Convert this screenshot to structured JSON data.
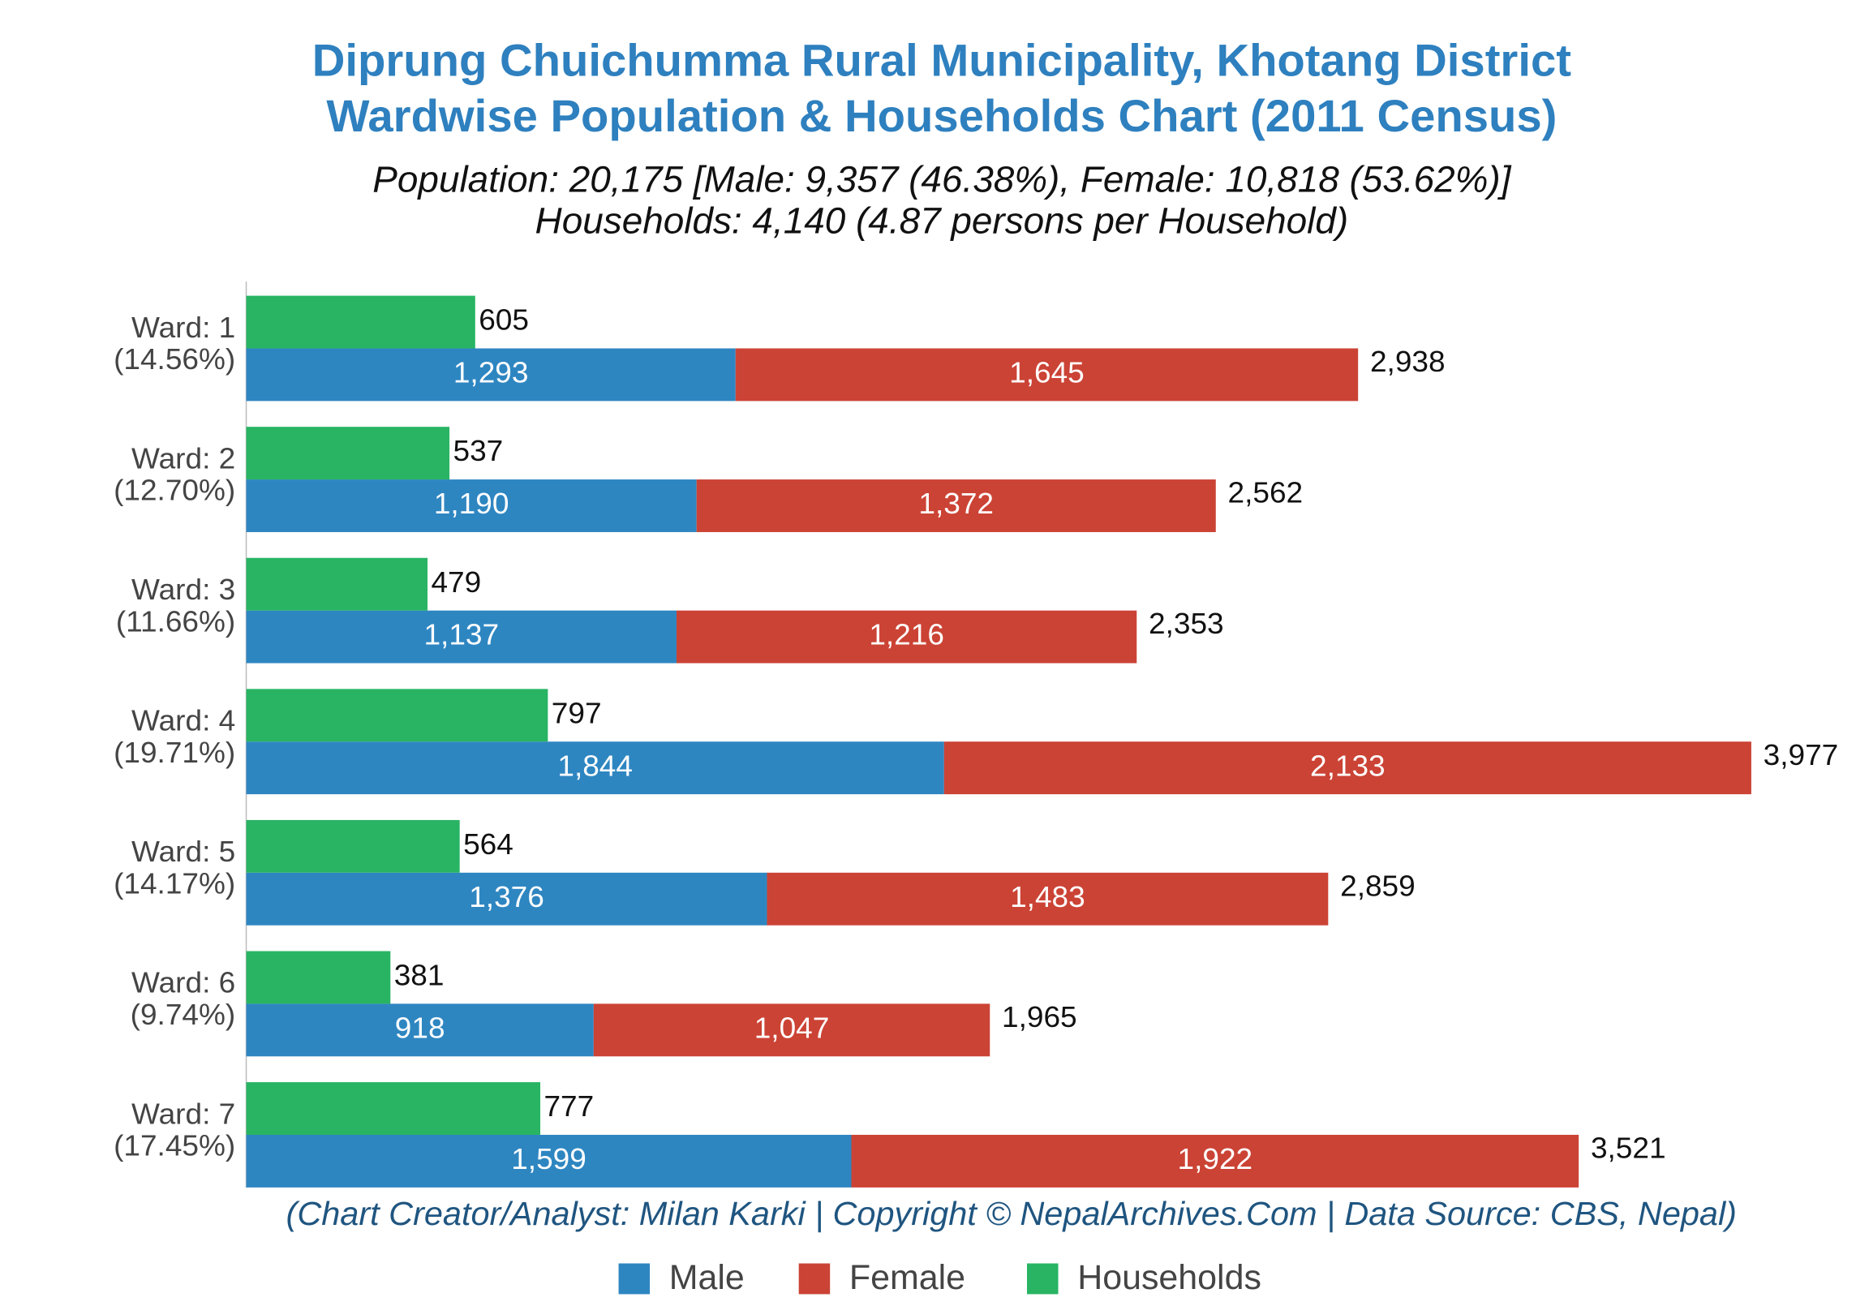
{
  "chart_data": {
    "type": "bar",
    "orientation": "horizontal",
    "title": [
      "Diprung Chuichumma Rural Municipality, Khotang District",
      "Wardwise Population & Households Chart (2011 Census)"
    ],
    "subtitle": [
      "Population: 20,175 [Male: 9,357 (46.38%), Female: 10,818 (53.62%)]",
      "Households: 4,140 (4.87 persons per Household)"
    ],
    "credit": "(Chart Creator/Analyst: Milan Karki | Copyright © NepalArchives.Com | Data Source: CBS, Nepal)",
    "categories": [
      "Ward: 1",
      "Ward: 2",
      "Ward: 3",
      "Ward: 4",
      "Ward: 5",
      "Ward: 6",
      "Ward: 7"
    ],
    "category_shares": [
      "(14.56%)",
      "(12.70%)",
      "(11.66%)",
      "(19.71%)",
      "(14.17%)",
      "(9.74%)",
      "(17.45%)"
    ],
    "series": [
      {
        "name": "Male",
        "color": "#2e86c1",
        "stack": "population",
        "values": [
          1293,
          1190,
          1137,
          1844,
          1376,
          918,
          1599
        ],
        "value_labels": [
          "1,293",
          "1,190",
          "1,137",
          "1,844",
          "1,376",
          "918",
          "1,599"
        ]
      },
      {
        "name": "Female",
        "color": "#cb4335",
        "stack": "population",
        "values": [
          1645,
          1372,
          1216,
          2133,
          1483,
          1047,
          1922
        ],
        "value_labels": [
          "1,645",
          "1,372",
          "1,216",
          "2,133",
          "1,483",
          "1,047",
          "1,922"
        ]
      },
      {
        "name": "Households",
        "color": "#28b463",
        "stack": "households",
        "values": [
          605,
          537,
          479,
          797,
          564,
          381,
          777
        ]
      }
    ],
    "totals": [
      2938,
      2562,
      2353,
      3977,
      2859,
      1965,
      3521
    ],
    "total_labels": [
      "2,938",
      "2,562",
      "2,353",
      "3,977",
      "2,859",
      "1,965",
      "3,521"
    ],
    "xlim": [
      0,
      4250
    ],
    "legend": "bottom"
  }
}
